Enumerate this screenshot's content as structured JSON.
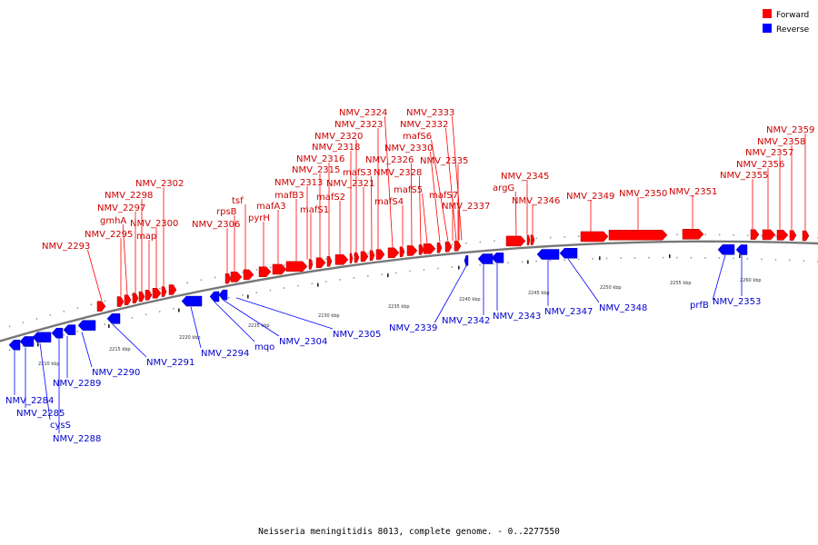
{
  "caption": "Neisseria meningitidis 8013, complete genome. - 0..2277550",
  "legend": [
    {
      "label": "Forward",
      "color": "#ff0000"
    },
    {
      "label": "Reverse",
      "color": "#0000ff"
    }
  ],
  "colors": {
    "forward": "#ff0000",
    "reverse": "#0000ff",
    "backbone": "#777777"
  },
  "tick_labels": [
    "2210 kbp",
    "2215 kbp",
    "2220 kbp",
    "2225 kbp",
    "2230 kbp",
    "2235 kbp",
    "2240 kbp",
    "2245 kbp",
    "2250 kbp",
    "2255 kbp",
    "2260 kbp"
  ],
  "forward_labels": [
    "NMV_2293",
    "NMV_2295",
    "gmhA",
    "NMV_2297",
    "NMV_2298",
    "map",
    "NMV_2300",
    "NMV_2302",
    "NMV_2306",
    "rpsB",
    "tsf",
    "pyrH",
    "mafA3",
    "mafB3",
    "NMV_2313",
    "mafS1",
    "NMV_2315",
    "NMV_2316",
    "mafS2",
    "NMV_2318",
    "NMV_2320",
    "NMV_2321",
    "mafS3",
    "NMV_2323",
    "NMV_2324",
    "mafS4",
    "NMV_2326",
    "NMV_2328",
    "mafS5",
    "NMV_2330",
    "mafS6",
    "NMV_2332",
    "NMV_2333",
    "NMV_2335",
    "mafS7",
    "NMV_2337",
    "argG",
    "NMV_2345",
    "NMV_2346",
    "NMV_2349",
    "NMV_2350",
    "NMV_2351",
    "NMV_2355",
    "NMV_2356",
    "NMV_2357",
    "NMV_2358",
    "NMV_2359"
  ],
  "reverse_labels": [
    "NMV_2284",
    "NMV_2285",
    "cysS",
    "NMV_2288",
    "NMV_2289",
    "NMV_2290",
    "NMV_2291",
    "NMV_2294",
    "mqo",
    "NMV_2304",
    "NMV_2305",
    "NMV_2339",
    "NMV_2342",
    "NMV_2343",
    "NMV_2347",
    "NMV_2348",
    "prfB",
    "NMV_2353"
  ]
}
